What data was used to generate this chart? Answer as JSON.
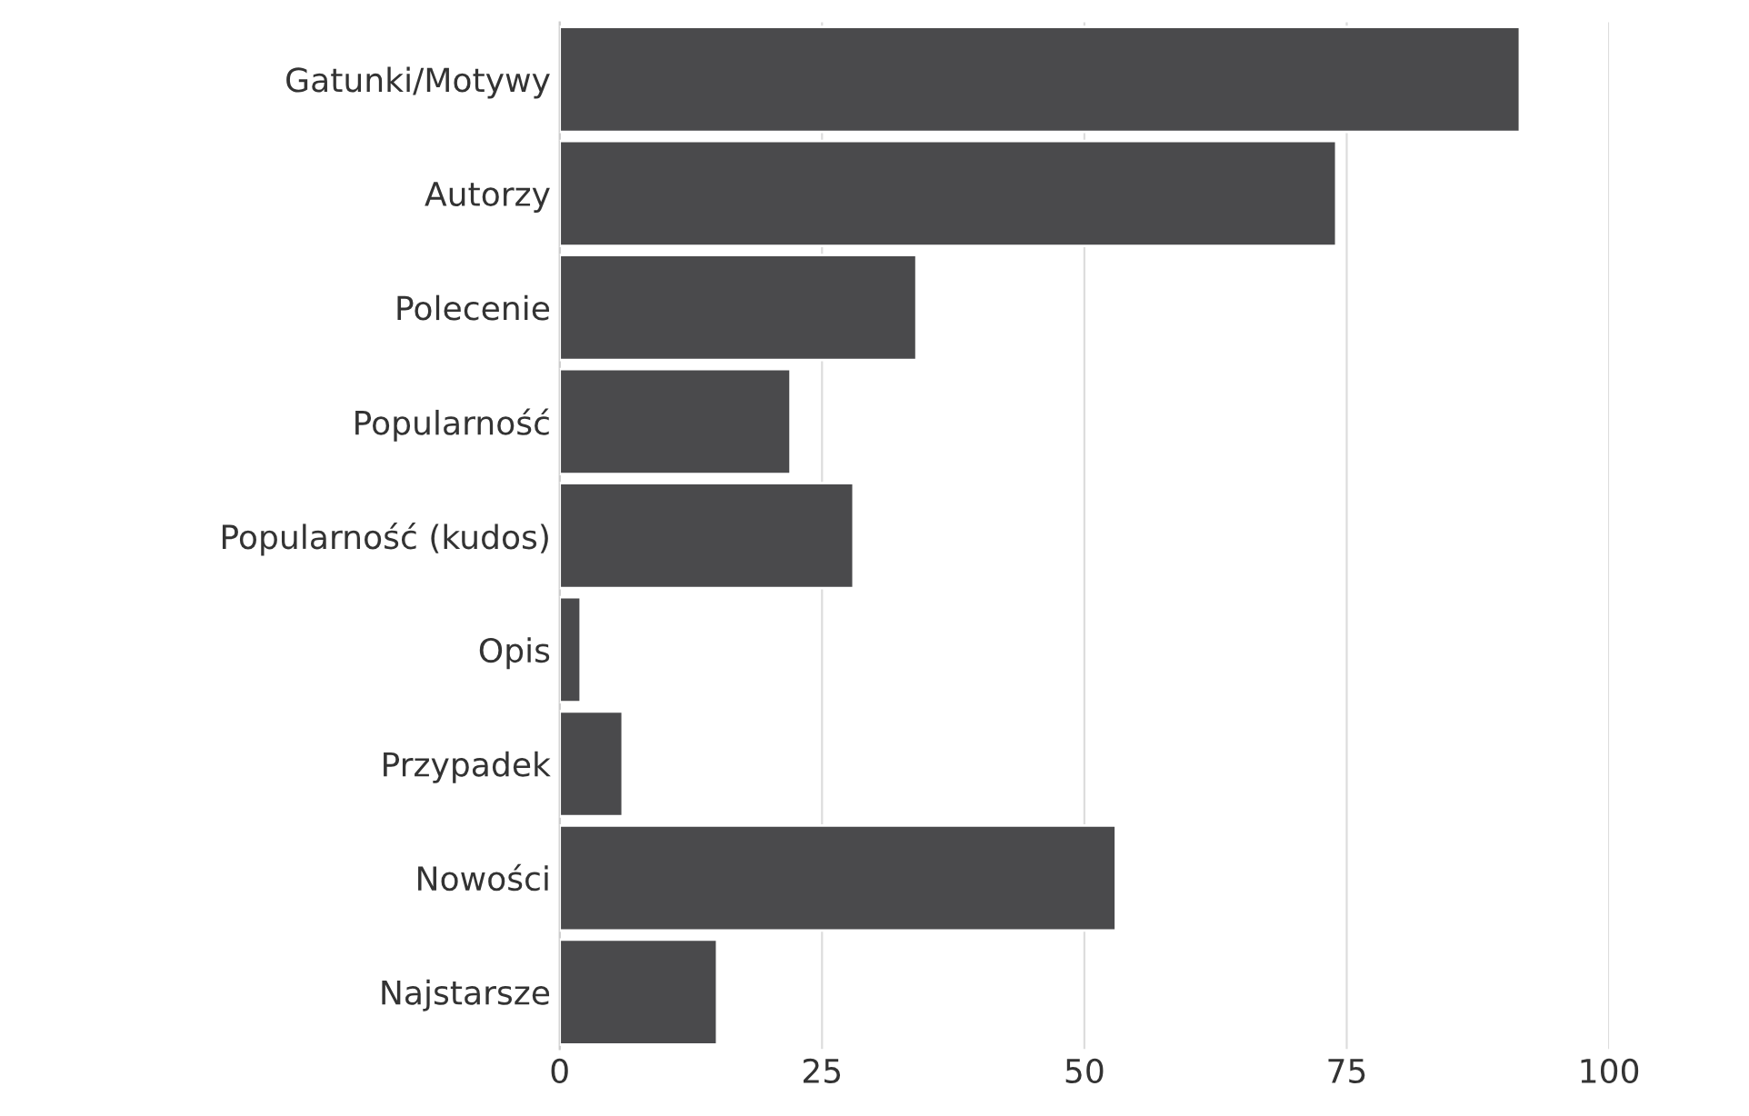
{
  "chart_data": {
    "type": "bar",
    "orientation": "horizontal",
    "categories": [
      "Gatunki/Motywy",
      "Autorzy",
      "Polecenie",
      "Popularność",
      "Popularność (kudos)",
      "Opis",
      "Przypadek",
      "Nowości",
      "Najstarsze"
    ],
    "values": [
      91.5,
      74,
      34,
      22,
      28,
      2,
      6,
      53,
      15
    ],
    "color": "#4a4a4c",
    "xlim": [
      0,
      100
    ],
    "xticks": [
      0,
      25,
      50,
      75,
      100
    ],
    "grid": "x"
  }
}
